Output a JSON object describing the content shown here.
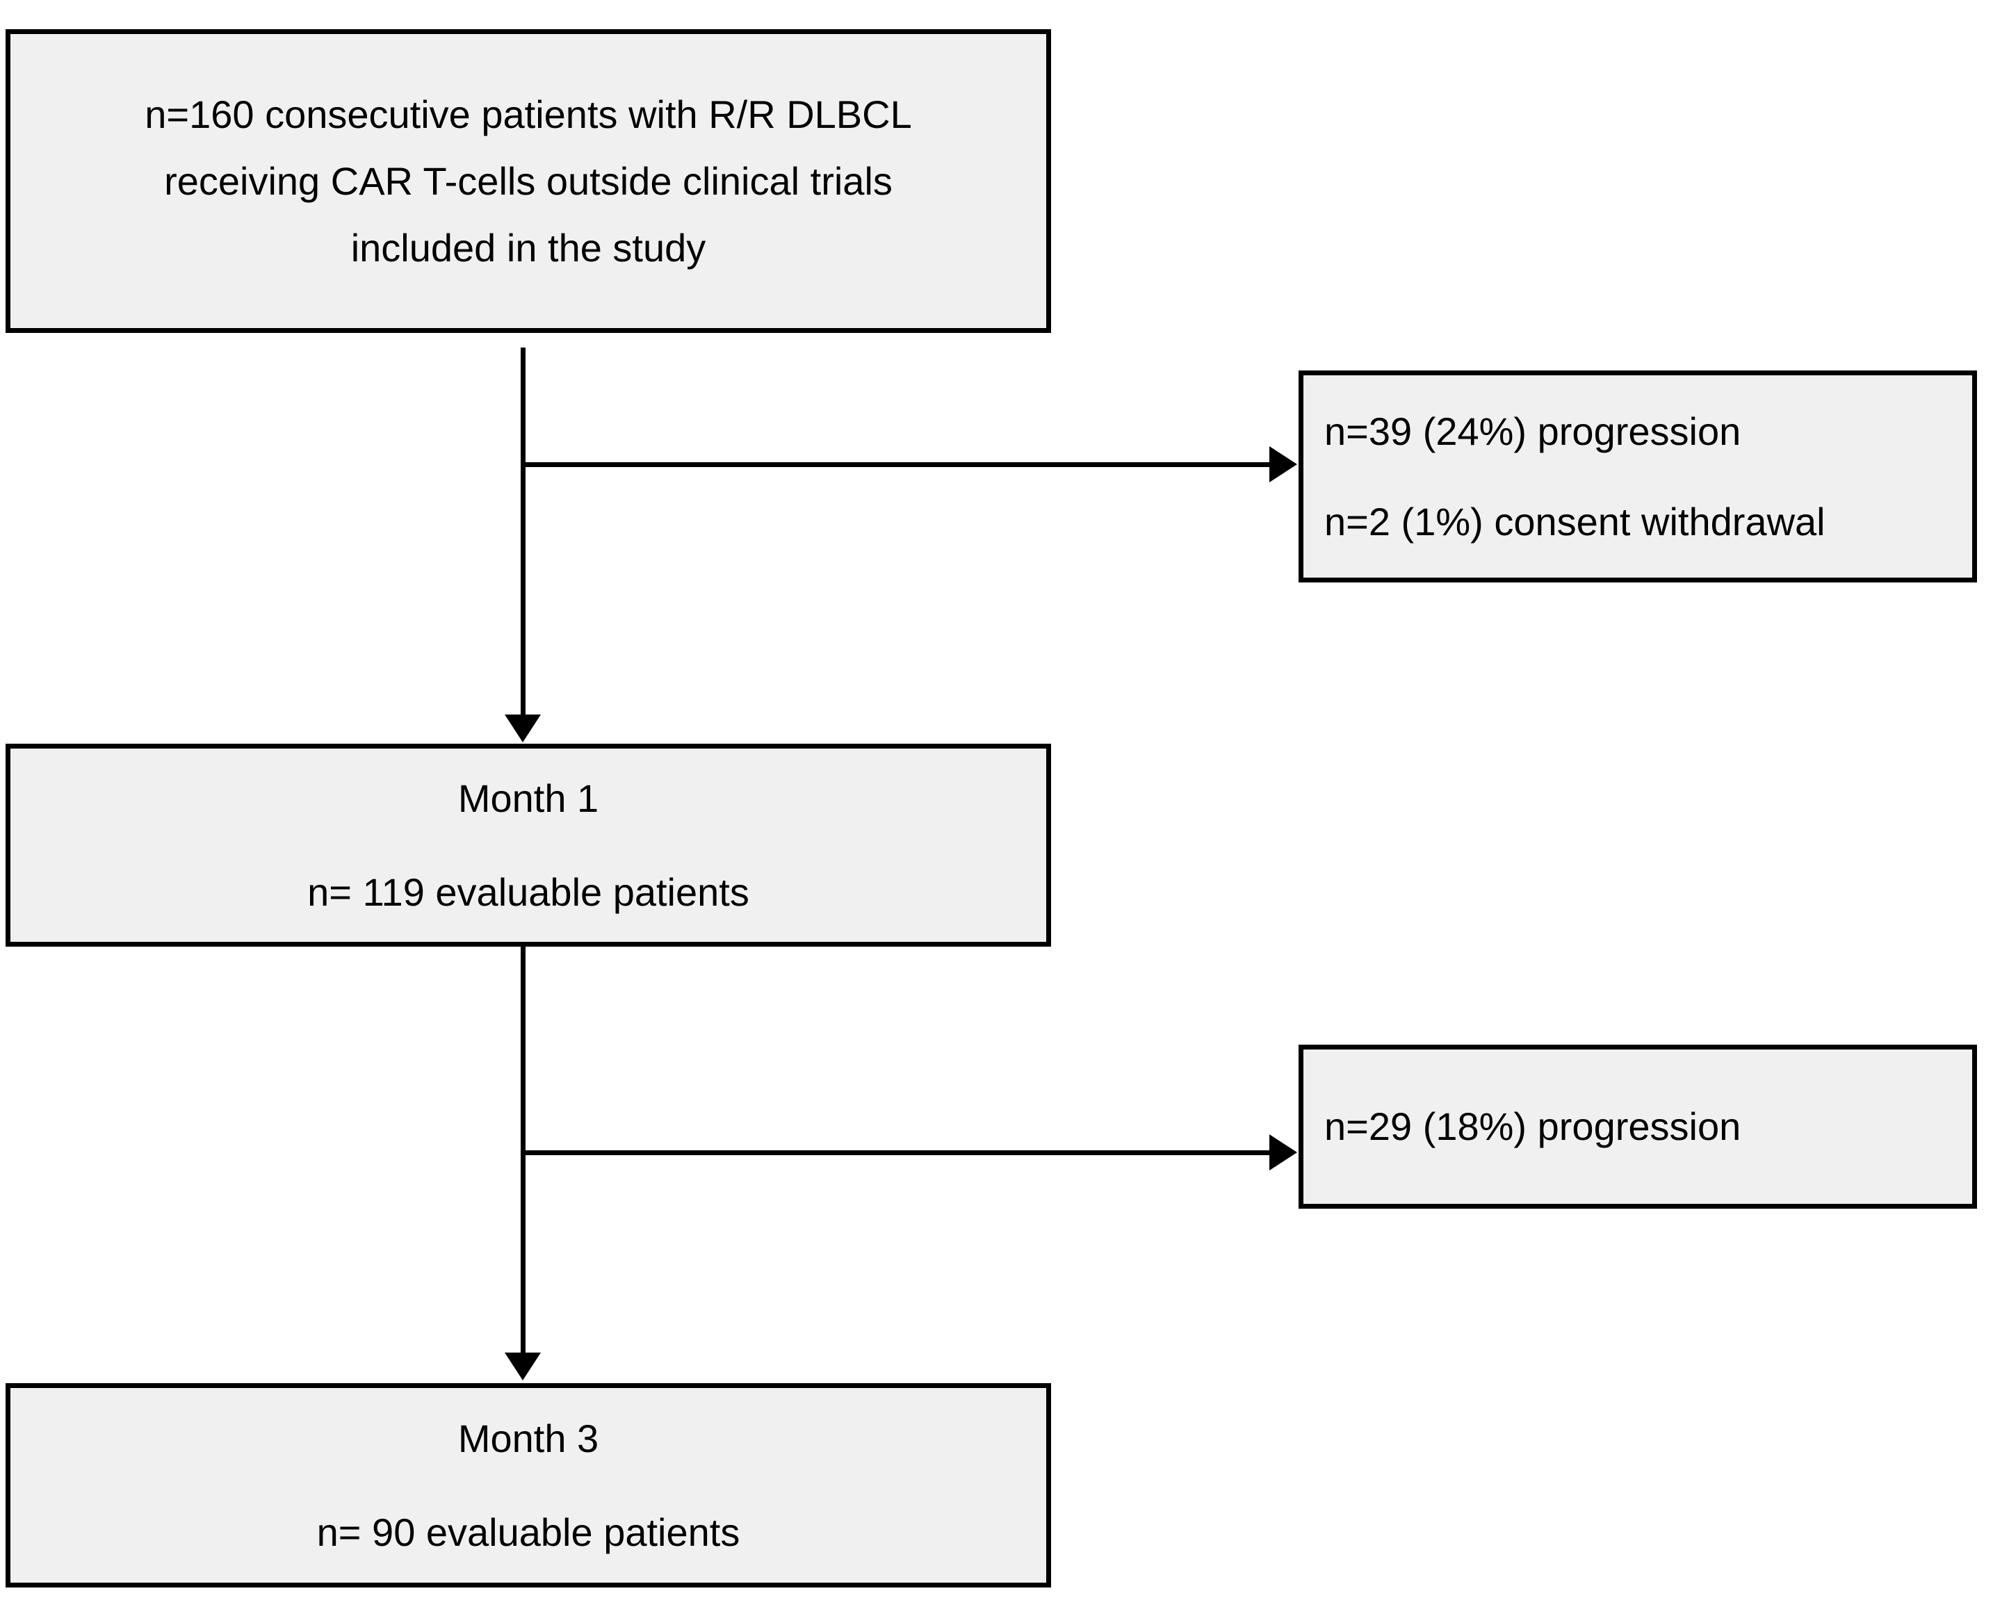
{
  "diagram": {
    "type": "patient-flow-chart",
    "enrollment_box": {
      "lines": [
        "n=160 consecutive patients with R/R DLBCL",
        "receiving CAR T-cells outside clinical trials",
        "included in the study"
      ]
    },
    "exclusion_box_1": {
      "lines": [
        "n=39 (24%) progression",
        "n=2 (1%) consent withdrawal"
      ]
    },
    "month_1_box": {
      "lines": [
        "Month 1",
        "n= 119 evaluable patients"
      ]
    },
    "exclusion_box_2": {
      "lines": [
        "n=29 (18%) progression"
      ]
    },
    "month_3_box": {
      "lines": [
        "Month 3",
        "n= 90 evaluable patients"
      ]
    },
    "colors": {
      "background": "#ffffff",
      "box_fill": "#f0f0f0",
      "box_border": "#000000",
      "arrow": "#000000",
      "text": "#000000"
    }
  }
}
